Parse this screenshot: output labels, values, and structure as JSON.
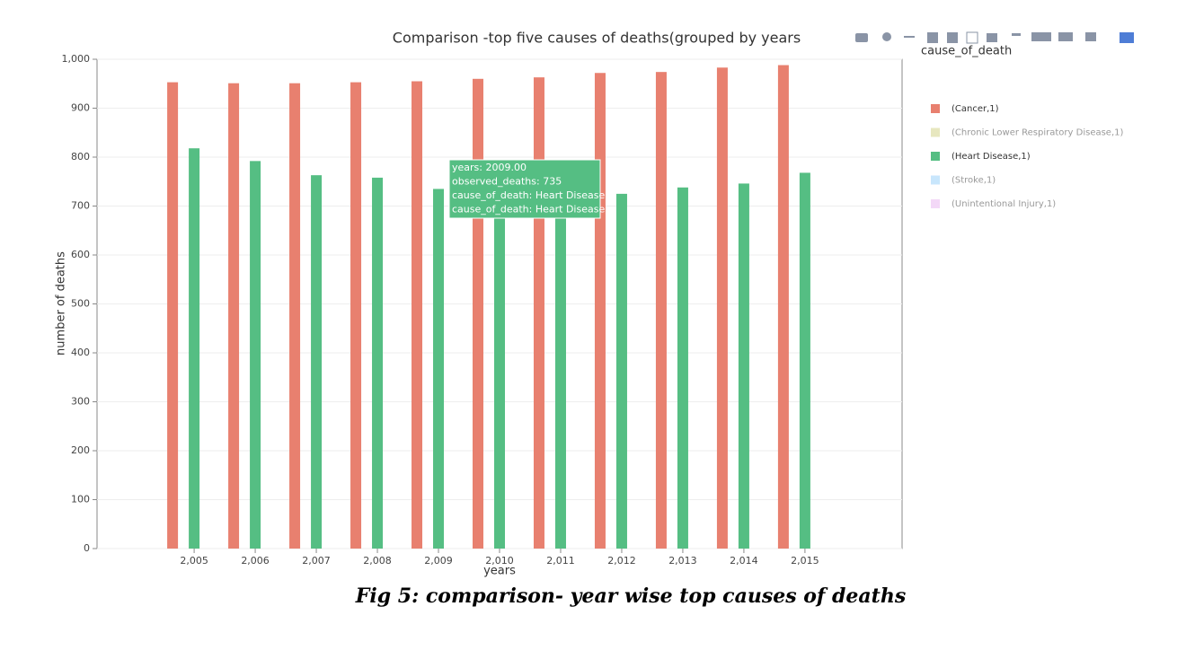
{
  "chart_data": {
    "type": "bar",
    "title": "Comparison -top five causes of deaths(grouped by years",
    "x_label": "years",
    "y_label": "number of deaths",
    "legend_title": "cause_of_death",
    "x": [
      2005,
      2006,
      2007,
      2008,
      2009,
      2010,
      2011,
      2012,
      2013,
      2014,
      2015
    ],
    "series": [
      {
        "name": "(Cancer,1)",
        "color": "#e8806f",
        "visible": true,
        "values": [
          953,
          951,
          951,
          953,
          955,
          960,
          963,
          972,
          974,
          983,
          988
        ]
      },
      {
        "name": "(Chronic Lower Respiratory Disease,1)",
        "color": "#cfcf80",
        "visible": false,
        "values": [
          null,
          null,
          null,
          null,
          null,
          null,
          null,
          null,
          null,
          null,
          null
        ]
      },
      {
        "name": "(Heart Disease,1)",
        "color": "#55be83",
        "visible": true,
        "values": [
          818,
          792,
          763,
          758,
          735,
          705,
          700,
          725,
          738,
          746,
          768
        ]
      },
      {
        "name": "(Stroke,1)",
        "color": "#92cdf9",
        "visible": false,
        "values": [
          null,
          null,
          null,
          null,
          null,
          null,
          null,
          null,
          null,
          null,
          null
        ]
      },
      {
        "name": "(Unintentional Injury,1)",
        "color": "#e8b2f0",
        "visible": false,
        "values": [
          null,
          null,
          null,
          null,
          null,
          null,
          null,
          null,
          null,
          null,
          null
        ]
      }
    ],
    "xlim": [
      2003.41,
      2016.59
    ],
    "xticks": [
      {
        "value": 2005,
        "label": "2,005"
      },
      {
        "value": 2006,
        "label": "2,006"
      },
      {
        "value": 2007,
        "label": "2,007"
      },
      {
        "value": 2008,
        "label": "2,008"
      },
      {
        "value": 2009,
        "label": "2,009"
      },
      {
        "value": 2010,
        "label": "2,010"
      },
      {
        "value": 2011,
        "label": "2,011"
      },
      {
        "value": 2012,
        "label": "2,012"
      },
      {
        "value": 2013,
        "label": "2,013"
      },
      {
        "value": 2014,
        "label": "2,014"
      },
      {
        "value": 2015,
        "label": "2,015"
      }
    ],
    "ylim": [
      0,
      1000
    ],
    "yticks": [
      0,
      100,
      200,
      300,
      400,
      500,
      600,
      700,
      800,
      900,
      {
        "value": 1000,
        "label": "1,000"
      }
    ],
    "grid": true,
    "legend_position": "right",
    "tooltip": [
      "years: 2009.00",
      "observed_deaths: 735",
      "cause_of_death: Heart Disease",
      "cause_of_death: Heart Disease"
    ],
    "caption": "Fig 5: comparison- year wise top causes of deaths"
  }
}
